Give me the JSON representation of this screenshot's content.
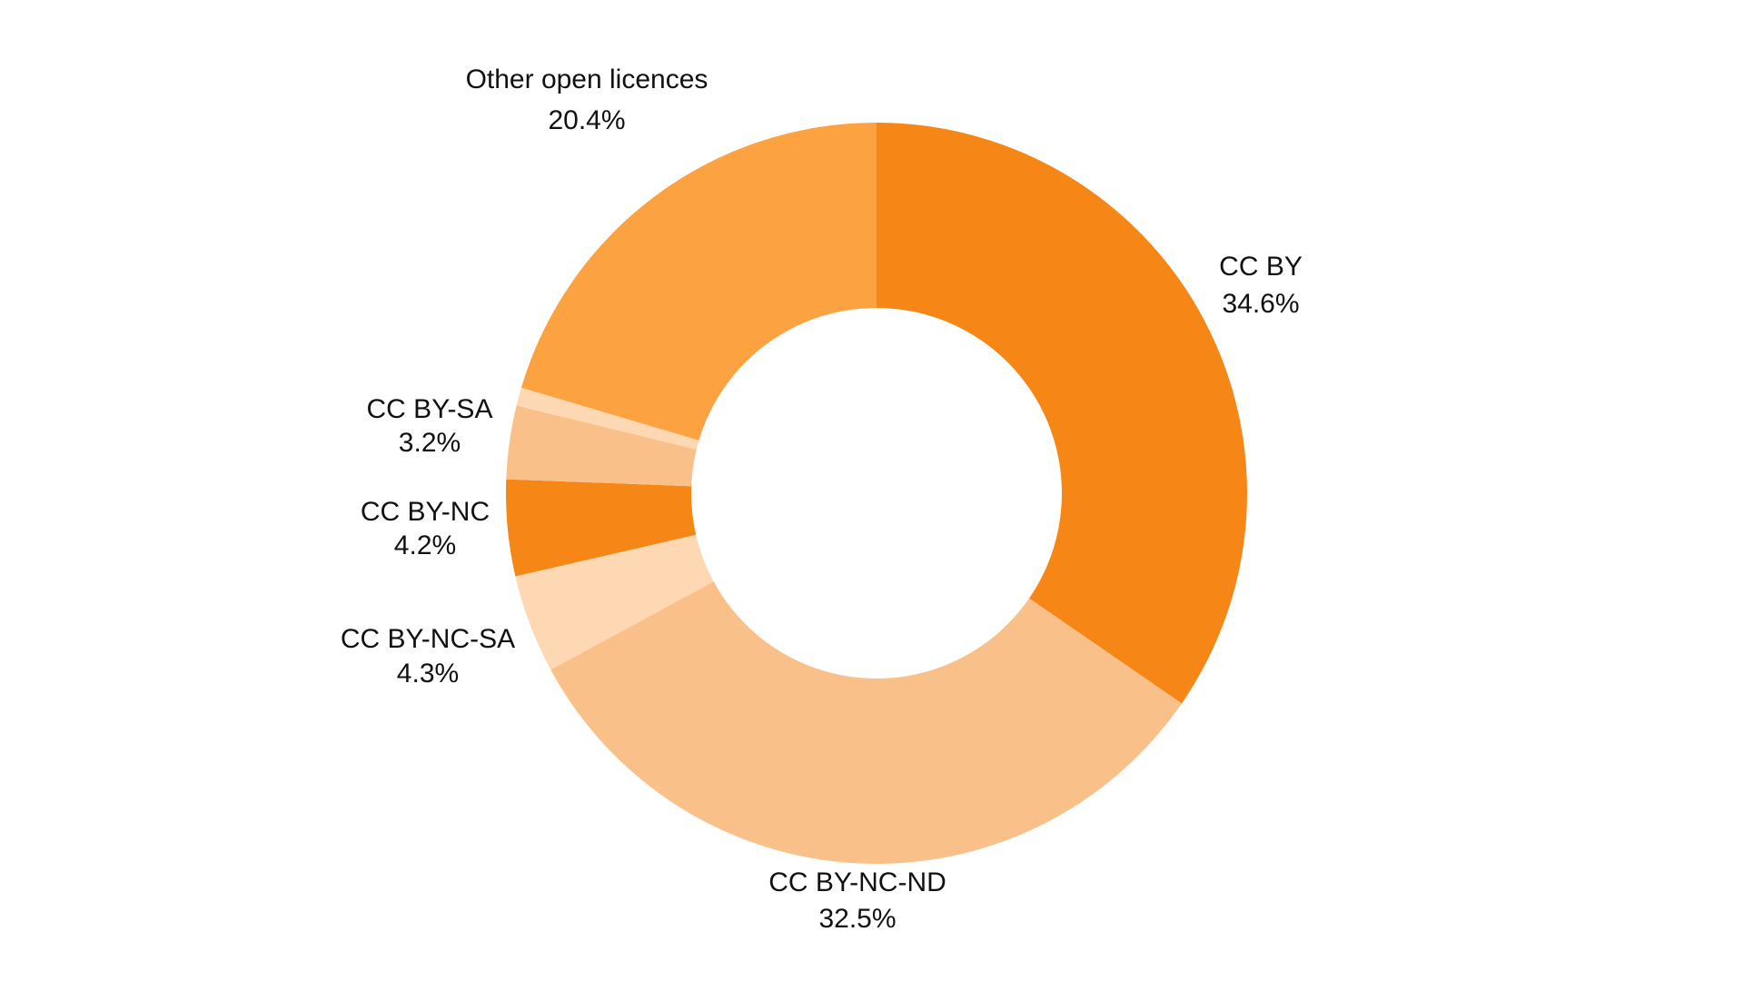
{
  "chart_data": {
    "type": "pie",
    "donut": true,
    "title": "",
    "slices": [
      {
        "label": "CC BY",
        "value": 34.6,
        "display": "34.6%",
        "color": "#F68616"
      },
      {
        "label": "CC BY-NC-ND",
        "value": 32.5,
        "display": "32.5%",
        "color": "#FAC08A"
      },
      {
        "label": "CC BY-NC-SA",
        "value": 4.3,
        "display": "4.3%",
        "color": "#FED8B2"
      },
      {
        "label": "CC BY-NC",
        "value": 4.2,
        "display": "4.2%",
        "color": "#F68616"
      },
      {
        "label": "CC BY-SA",
        "value": 3.2,
        "display": "3.2%",
        "color": "#FAC08A"
      },
      {
        "label": "",
        "value": 0.8,
        "display": "",
        "color": "#FED8B2"
      },
      {
        "label": "Other open licences",
        "value": 20.4,
        "display": "20.4%",
        "color": "#FDA240"
      }
    ]
  }
}
